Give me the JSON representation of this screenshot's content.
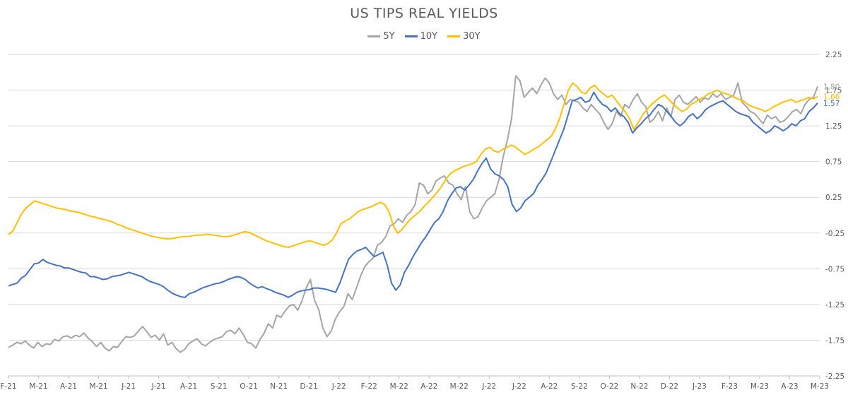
{
  "chart_data": {
    "type": "line",
    "title": "US TIPS REAL YIELDS",
    "ylim": [
      -2.25,
      2.25
    ],
    "y_ticks": [
      "2.25",
      "1.75",
      "1.25",
      "0.75",
      "0.25",
      "-0.25",
      "-0.75",
      "-1.25",
      "-1.75",
      "-2.25"
    ],
    "y_axis_position": "right",
    "gridlines": "horizontal",
    "legend_position": "top-center",
    "x_ticks": [
      "F-21",
      "M-21",
      "A-21",
      "M-21",
      "J-21",
      "J-21",
      "A-21",
      "S-21",
      "O-21",
      "N-21",
      "D-21",
      "J-22",
      "F-22",
      "M-22",
      "A-22",
      "M-22",
      "J-22",
      "J-22",
      "A-22",
      "S-22",
      "O-22",
      "N-22",
      "D-22",
      "J-23",
      "F-23",
      "M-23",
      "A-23",
      "M-23"
    ],
    "series": [
      {
        "name": "5Y",
        "color": "#a5a5a5",
        "end_label": "1.80",
        "values": [
          -1.85,
          -1.82,
          -1.78,
          -1.8,
          -1.76,
          -1.82,
          -1.86,
          -1.78,
          -1.84,
          -1.8,
          -1.81,
          -1.74,
          -1.76,
          -1.7,
          -1.69,
          -1.72,
          -1.68,
          -1.7,
          -1.65,
          -1.72,
          -1.77,
          -1.84,
          -1.78,
          -1.86,
          -1.9,
          -1.84,
          -1.85,
          -1.77,
          -1.7,
          -1.71,
          -1.69,
          -1.62,
          -1.56,
          -1.63,
          -1.71,
          -1.68,
          -1.75,
          -1.66,
          -1.82,
          -1.78,
          -1.87,
          -1.92,
          -1.88,
          -1.8,
          -1.76,
          -1.73,
          -1.8,
          -1.83,
          -1.78,
          -1.74,
          -1.72,
          -1.7,
          -1.63,
          -1.61,
          -1.66,
          -1.58,
          -1.67,
          -1.78,
          -1.8,
          -1.86,
          -1.74,
          -1.65,
          -1.52,
          -1.58,
          -1.4,
          -1.43,
          -1.34,
          -1.27,
          -1.25,
          -1.33,
          -1.2,
          -1.02,
          -0.9,
          -1.19,
          -1.32,
          -1.58,
          -1.7,
          -1.62,
          -1.45,
          -1.35,
          -1.28,
          -1.1,
          -1.18,
          -1.02,
          -0.85,
          -0.72,
          -0.65,
          -0.6,
          -0.42,
          -0.38,
          -0.3,
          -0.15,
          -0.12,
          -0.05,
          -0.1,
          0.0,
          0.05,
          0.15,
          0.45,
          0.42,
          0.3,
          0.35,
          0.48,
          0.52,
          0.55,
          0.45,
          0.42,
          0.3,
          0.22,
          0.4,
          0.05,
          -0.05,
          -0.02,
          0.1,
          0.2,
          0.25,
          0.3,
          0.5,
          0.82,
          1.05,
          1.35,
          1.95,
          1.88,
          1.65,
          1.72,
          1.78,
          1.7,
          1.82,
          1.92,
          1.85,
          1.7,
          1.62,
          1.68,
          1.55,
          1.62,
          1.6,
          1.58,
          1.5,
          1.45,
          1.55,
          1.48,
          1.42,
          1.3,
          1.2,
          1.28,
          1.45,
          1.38,
          1.55,
          1.5,
          1.62,
          1.7,
          1.58,
          1.52,
          1.3,
          1.35,
          1.45,
          1.32,
          1.5,
          1.38,
          1.62,
          1.68,
          1.58,
          1.55,
          1.6,
          1.66,
          1.58,
          1.64,
          1.62,
          1.7,
          1.65,
          1.7,
          1.62,
          1.65,
          1.68,
          1.85,
          1.58,
          1.52,
          1.45,
          1.42,
          1.35,
          1.28,
          1.4,
          1.35,
          1.38,
          1.3,
          1.32,
          1.38,
          1.45,
          1.48,
          1.42,
          1.55,
          1.62,
          1.65,
          1.8
        ]
      },
      {
        "name": "10Y",
        "color": "#4472c4",
        "end_label": "1.57",
        "values": [
          -0.99,
          -0.97,
          -0.95,
          -0.88,
          -0.84,
          -0.76,
          -0.68,
          -0.67,
          -0.62,
          -0.66,
          -0.68,
          -0.7,
          -0.71,
          -0.74,
          -0.74,
          -0.76,
          -0.78,
          -0.8,
          -0.81,
          -0.86,
          -0.86,
          -0.88,
          -0.9,
          -0.89,
          -0.86,
          -0.85,
          -0.84,
          -0.82,
          -0.8,
          -0.82,
          -0.84,
          -0.86,
          -0.9,
          -0.93,
          -0.95,
          -0.97,
          -1.0,
          -1.05,
          -1.09,
          -1.12,
          -1.14,
          -1.15,
          -1.1,
          -1.08,
          -1.05,
          -1.02,
          -1.0,
          -0.98,
          -0.96,
          -0.95,
          -0.93,
          -0.9,
          -0.88,
          -0.86,
          -0.87,
          -0.9,
          -0.95,
          -0.99,
          -1.02,
          -1.0,
          -1.03,
          -1.05,
          -1.08,
          -1.1,
          -1.12,
          -1.15,
          -1.12,
          -1.08,
          -1.06,
          -1.05,
          -1.04,
          -1.02,
          -1.02,
          -1.03,
          -1.04,
          -1.06,
          -1.08,
          -0.95,
          -0.78,
          -0.62,
          -0.55,
          -0.5,
          -0.48,
          -0.45,
          -0.52,
          -0.58,
          -0.55,
          -0.52,
          -0.7,
          -0.95,
          -1.05,
          -0.98,
          -0.8,
          -0.7,
          -0.58,
          -0.48,
          -0.38,
          -0.3,
          -0.2,
          -0.1,
          -0.05,
          0.05,
          0.2,
          0.3,
          0.38,
          0.4,
          0.35,
          0.42,
          0.5,
          0.62,
          0.72,
          0.8,
          0.65,
          0.58,
          0.55,
          0.5,
          0.4,
          0.15,
          0.05,
          0.1,
          0.2,
          0.25,
          0.3,
          0.42,
          0.5,
          0.6,
          0.75,
          0.9,
          1.05,
          1.2,
          1.4,
          1.6,
          1.62,
          1.65,
          1.58,
          1.6,
          1.72,
          1.62,
          1.55,
          1.52,
          1.45,
          1.5,
          1.42,
          1.38,
          1.3,
          1.15,
          1.22,
          1.28,
          1.35,
          1.4,
          1.48,
          1.55,
          1.52,
          1.45,
          1.38,
          1.3,
          1.25,
          1.3,
          1.38,
          1.42,
          1.35,
          1.4,
          1.48,
          1.52,
          1.55,
          1.58,
          1.6,
          1.55,
          1.5,
          1.45,
          1.42,
          1.4,
          1.38,
          1.3,
          1.25,
          1.2,
          1.15,
          1.18,
          1.25,
          1.22,
          1.18,
          1.22,
          1.28,
          1.25,
          1.32,
          1.35,
          1.45,
          1.5,
          1.57
        ]
      },
      {
        "name": "30Y",
        "color": "#ffc000",
        "end_label": "1.66",
        "values": [
          -0.27,
          -0.22,
          -0.1,
          0.02,
          0.1,
          0.15,
          0.2,
          0.18,
          0.16,
          0.14,
          0.12,
          0.1,
          0.09,
          0.08,
          0.06,
          0.05,
          0.04,
          0.02,
          0.0,
          -0.02,
          -0.03,
          -0.05,
          -0.06,
          -0.08,
          -0.1,
          -0.13,
          -0.15,
          -0.18,
          -0.2,
          -0.22,
          -0.24,
          -0.26,
          -0.28,
          -0.3,
          -0.31,
          -0.32,
          -0.33,
          -0.33,
          -0.32,
          -0.31,
          -0.3,
          -0.3,
          -0.29,
          -0.28,
          -0.28,
          -0.27,
          -0.27,
          -0.28,
          -0.29,
          -0.3,
          -0.3,
          -0.29,
          -0.27,
          -0.25,
          -0.23,
          -0.24,
          -0.27,
          -0.3,
          -0.33,
          -0.36,
          -0.38,
          -0.4,
          -0.42,
          -0.44,
          -0.45,
          -0.43,
          -0.41,
          -0.39,
          -0.37,
          -0.36,
          -0.38,
          -0.4,
          -0.42,
          -0.4,
          -0.35,
          -0.25,
          -0.12,
          -0.08,
          -0.05,
          0.0,
          0.05,
          0.08,
          0.1,
          0.12,
          0.15,
          0.18,
          0.15,
          0.05,
          -0.15,
          -0.25,
          -0.2,
          -0.12,
          -0.05,
          0.0,
          0.05,
          0.12,
          0.18,
          0.25,
          0.32,
          0.4,
          0.5,
          0.58,
          0.62,
          0.65,
          0.68,
          0.7,
          0.72,
          0.75,
          0.85,
          0.92,
          0.95,
          0.9,
          0.88,
          0.92,
          0.95,
          0.98,
          0.95,
          0.9,
          0.85,
          0.88,
          0.92,
          0.95,
          1.0,
          1.05,
          1.1,
          1.2,
          1.35,
          1.55,
          1.75,
          1.85,
          1.8,
          1.72,
          1.7,
          1.78,
          1.82,
          1.75,
          1.7,
          1.65,
          1.68,
          1.6,
          1.52,
          1.45,
          1.35,
          1.2,
          1.3,
          1.4,
          1.48,
          1.55,
          1.6,
          1.65,
          1.68,
          1.62,
          1.55,
          1.5,
          1.45,
          1.48,
          1.55,
          1.58,
          1.62,
          1.65,
          1.7,
          1.72,
          1.75,
          1.72,
          1.7,
          1.68,
          1.65,
          1.62,
          1.6,
          1.55,
          1.52,
          1.5,
          1.48,
          1.45,
          1.48,
          1.52,
          1.55,
          1.58,
          1.6,
          1.62,
          1.58,
          1.6,
          1.62,
          1.65,
          1.63,
          1.66
        ]
      }
    ]
  }
}
